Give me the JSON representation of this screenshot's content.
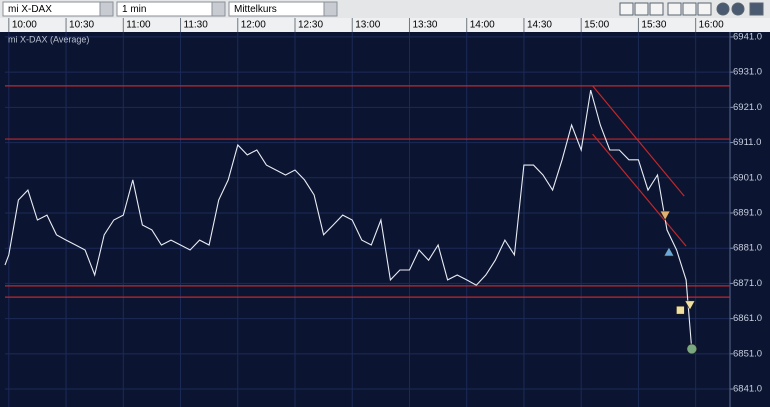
{
  "toolbar": {
    "symbol": "mi X-DAX",
    "interval": "1 min",
    "price": "Mittelkurs"
  },
  "chart_data": {
    "type": "line",
    "x": [
      "09:58",
      "10:00",
      "10:05",
      "10:10",
      "10:15",
      "10:20",
      "10:25",
      "10:30",
      "10:35",
      "10:40",
      "10:45",
      "10:50",
      "10:55",
      "11:00",
      "11:05",
      "11:10",
      "11:15",
      "11:20",
      "11:25",
      "11:30",
      "11:35",
      "11:40",
      "11:45",
      "11:50",
      "11:55",
      "12:00",
      "12:05",
      "12:10",
      "12:15",
      "12:20",
      "12:25",
      "12:30",
      "12:35",
      "12:40",
      "12:45",
      "12:50",
      "12:55",
      "13:00",
      "13:05",
      "13:10",
      "13:15",
      "13:20",
      "13:25",
      "13:30",
      "13:35",
      "13:40",
      "13:45",
      "13:50",
      "13:55",
      "14:00",
      "14:05",
      "14:10",
      "14:15",
      "14:20",
      "14:25",
      "14:30",
      "14:35",
      "14:40",
      "14:45",
      "14:50",
      "14:55",
      "15:00",
      "15:05",
      "15:10",
      "15:15",
      "15:20",
      "15:25",
      "15:30",
      "15:35",
      "15:40",
      "15:45",
      "15:50",
      "15:55",
      "15:58"
    ],
    "series": [
      {
        "name": "mi X-DAX (Average)",
        "color": "#e8ecf4",
        "values": [
          6876.2,
          6879.1,
          6894.7,
          6897.5,
          6889.0,
          6890.4,
          6884.8,
          6883.3,
          6881.9,
          6880.5,
          6873.4,
          6884.8,
          6889.0,
          6890.4,
          6900.4,
          6887.6,
          6886.2,
          6881.9,
          6883.3,
          6881.9,
          6880.5,
          6883.3,
          6881.9,
          6894.7,
          6900.4,
          6910.3,
          6907.5,
          6908.9,
          6904.6,
          6903.2,
          6901.8,
          6903.2,
          6900.4,
          6896.1,
          6884.8,
          6887.6,
          6890.4,
          6889.0,
          6883.3,
          6881.9,
          6889.0,
          6872.0,
          6874.8,
          6874.8,
          6880.5,
          6877.6,
          6881.9,
          6872.0,
          6873.4,
          6872.0,
          6870.5,
          6873.4,
          6877.6,
          6883.3,
          6879.1,
          6904.6,
          6904.6,
          6901.8,
          6897.5,
          6906.1,
          6916.0,
          6908.9,
          6925.9,
          6916.0,
          6908.9,
          6908.9,
          6906.1,
          6906.1,
          6897.5,
          6901.8,
          6886.2,
          6880.5,
          6872.0,
          6852.1
        ]
      }
    ],
    "xlim": [
      "09:58",
      "16:18"
    ],
    "xticks": [
      "10:00",
      "10:30",
      "11:00",
      "11:30",
      "12:00",
      "12:30",
      "13:00",
      "13:30",
      "14:00",
      "14:30",
      "15:00",
      "15:30",
      "16:00"
    ],
    "ylim": [
      6835.9,
      6942.4
    ],
    "yticks": [
      {
        "value": 6941,
        "label": "6941.0"
      },
      {
        "value": 6931,
        "label": "6931.0"
      },
      {
        "value": 6921,
        "label": "6921.0"
      },
      {
        "value": 6911,
        "label": "6911.0"
      },
      {
        "value": 6901,
        "label": "6901.0"
      },
      {
        "value": 6891,
        "label": "6891.0"
      },
      {
        "value": 6881,
        "label": "6881.0"
      },
      {
        "value": 6871,
        "label": "6871.0"
      },
      {
        "value": 6861,
        "label": "6861.0"
      },
      {
        "value": 6851,
        "label": "6851.0"
      },
      {
        "value": 6841,
        "label": "6841.0"
      }
    ],
    "grid": true,
    "levels": [
      6927.1,
      6912.0,
      6870.3,
      6867.1
    ],
    "level_color": "#c0282c",
    "trendlines": [
      {
        "x": [
          "15:06",
          "15:54"
        ],
        "y": [
          6927.1,
          6895.8
        ]
      },
      {
        "x": [
          "15:06",
          "15:55"
        ],
        "y": [
          6913.4,
          6881.6
        ]
      }
    ],
    "markers": [
      {
        "shape": "triangle-down",
        "x": "15:44",
        "y": 6890.4,
        "color": "#e0b070"
      },
      {
        "shape": "triangle-up",
        "x": "15:46",
        "y": 6879.9,
        "color": "#6aa8d8"
      },
      {
        "shape": "square",
        "x": "15:52",
        "y": 6863.4,
        "color": "#f0e0a0"
      },
      {
        "shape": "triangle-down",
        "x": "15:57",
        "y": 6864.9,
        "color": "#f0e0a0"
      },
      {
        "shape": "circle",
        "x": "15:58",
        "y": 6852.4,
        "color": "#7aa880"
      }
    ]
  }
}
